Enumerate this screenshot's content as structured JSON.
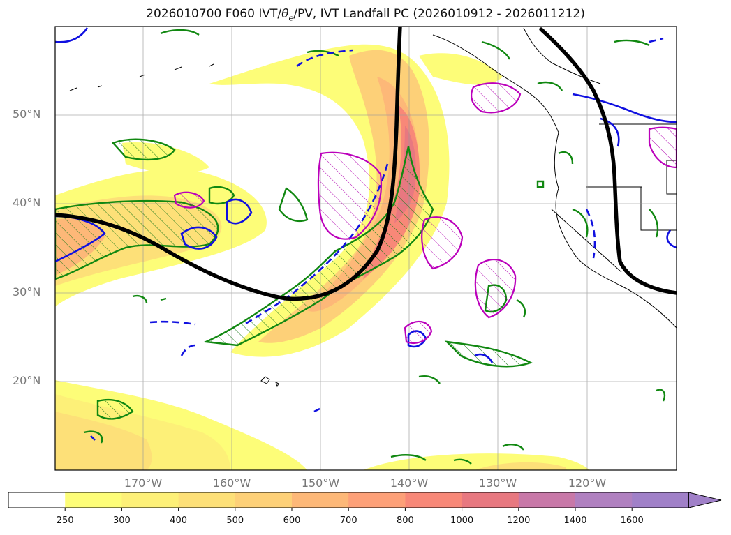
{
  "title": {
    "prefix": "2026010700 F060 IVT/",
    "theta": "θ",
    "theta_sub": "e",
    "suffix": "/PV, IVT Landfall PC (2026010912 - 2026011212)"
  },
  "lat_labels": [
    "50°N",
    "40°N",
    "30°N",
    "20°N"
  ],
  "lon_labels": [
    "170°W",
    "160°W",
    "150°W",
    "140°W",
    "130°W",
    "120°W"
  ],
  "colorbar": {
    "ticks": [
      "250",
      "300",
      "400",
      "500",
      "600",
      "700",
      "800",
      "1000",
      "1200",
      "1400",
      "1600"
    ],
    "colors": [
      "#ffffff",
      "#fdfd78",
      "#fdf078",
      "#fde078",
      "#fdd078",
      "#fdb878",
      "#fda078",
      "#f88878",
      "#e87880",
      "#c878a8",
      "#b080c0",
      "#a080c8"
    ]
  }
}
